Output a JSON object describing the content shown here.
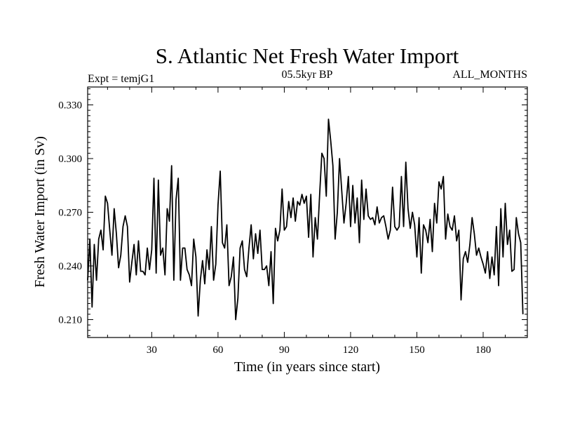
{
  "chart_data": {
    "type": "line",
    "title": "S. Atlantic Net Fresh Water Import",
    "subtitle_left": "Expt = temjG1",
    "subtitle_center": "05.5kyr BP",
    "subtitle_right": "ALL_MONTHS",
    "xlabel": "Time (in years since start)",
    "ylabel": "Fresh Water Import (in Sv)",
    "xlim": [
      1,
      200
    ],
    "ylim": [
      0.2,
      0.34
    ],
    "xticks": [
      30,
      60,
      90,
      120,
      150,
      180
    ],
    "yticks": [
      0.21,
      0.24,
      0.27,
      0.3,
      0.33
    ],
    "xtick_labels": [
      "30",
      "60",
      "90",
      "120",
      "150",
      "180"
    ],
    "ytick_labels": [
      "0.210",
      "0.240",
      "0.270",
      "0.300",
      "0.330"
    ],
    "series": [
      {
        "name": "Fresh Water Import",
        "x_start": 1,
        "x_step": 1,
        "values": [
          0.232,
          0.255,
          0.217,
          0.252,
          0.232,
          0.255,
          0.26,
          0.249,
          0.279,
          0.275,
          0.26,
          0.246,
          0.272,
          0.258,
          0.239,
          0.246,
          0.262,
          0.268,
          0.262,
          0.231,
          0.242,
          0.252,
          0.235,
          0.254,
          0.237,
          0.237,
          0.235,
          0.25,
          0.238,
          0.249,
          0.289,
          0.236,
          0.288,
          0.246,
          0.25,
          0.235,
          0.272,
          0.265,
          0.296,
          0.232,
          0.277,
          0.289,
          0.232,
          0.25,
          0.25,
          0.238,
          0.235,
          0.229,
          0.255,
          0.245,
          0.212,
          0.232,
          0.243,
          0.23,
          0.249,
          0.238,
          0.262,
          0.232,
          0.241,
          0.274,
          0.293,
          0.253,
          0.25,
          0.263,
          0.229,
          0.234,
          0.245,
          0.21,
          0.222,
          0.25,
          0.254,
          0.238,
          0.234,
          0.25,
          0.263,
          0.244,
          0.258,
          0.247,
          0.26,
          0.238,
          0.238,
          0.24,
          0.229,
          0.248,
          0.219,
          0.261,
          0.254,
          0.26,
          0.283,
          0.26,
          0.262,
          0.276,
          0.267,
          0.278,
          0.265,
          0.276,
          0.274,
          0.28,
          0.275,
          0.279,
          0.256,
          0.28,
          0.245,
          0.267,
          0.255,
          0.28,
          0.303,
          0.3,
          0.279,
          0.322,
          0.31,
          0.296,
          0.255,
          0.27,
          0.3,
          0.282,
          0.264,
          0.275,
          0.29,
          0.262,
          0.285,
          0.264,
          0.278,
          0.253,
          0.288,
          0.266,
          0.283,
          0.268,
          0.266,
          0.267,
          0.263,
          0.273,
          0.264,
          0.267,
          0.268,
          0.262,
          0.255,
          0.26,
          0.284,
          0.262,
          0.26,
          0.262,
          0.29,
          0.262,
          0.298,
          0.272,
          0.261,
          0.27,
          0.263,
          0.245,
          0.267,
          0.236,
          0.263,
          0.26,
          0.253,
          0.266,
          0.248,
          0.275,
          0.264,
          0.287,
          0.283,
          0.29,
          0.255,
          0.269,
          0.262,
          0.26,
          0.268,
          0.254,
          0.26,
          0.221,
          0.244,
          0.248,
          0.242,
          0.252,
          0.267,
          0.258,
          0.246,
          0.25,
          0.245,
          0.241,
          0.236,
          0.248,
          0.233,
          0.245,
          0.235,
          0.262,
          0.229,
          0.272,
          0.245,
          0.275,
          0.252,
          0.26,
          0.237,
          0.238,
          0.267,
          0.258,
          0.253,
          0.213
        ]
      }
    ]
  }
}
